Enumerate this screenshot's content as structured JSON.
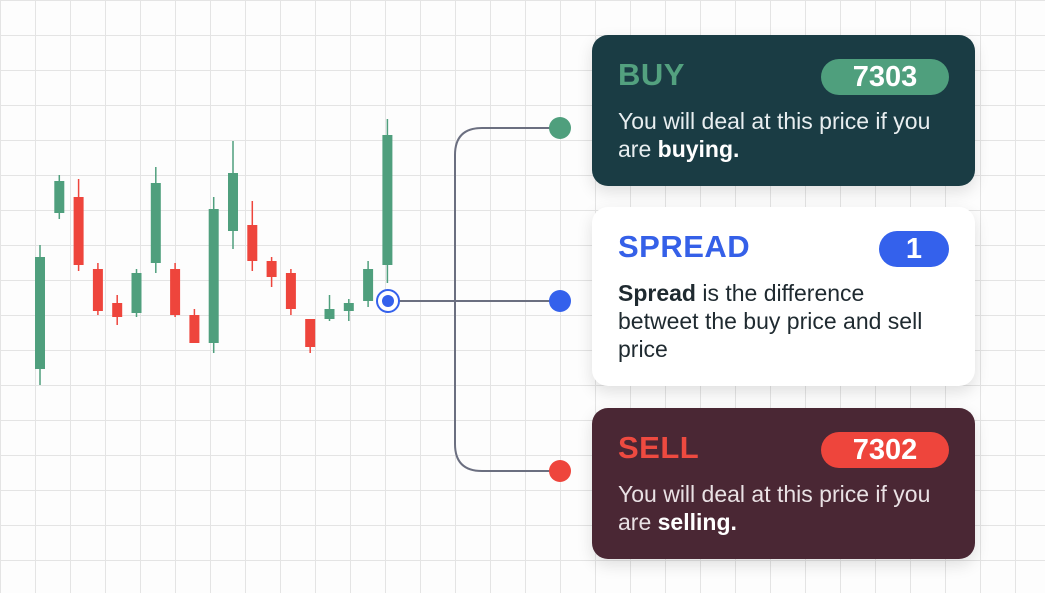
{
  "chart_data": {
    "type": "candlestick",
    "title": "",
    "xlabel": "",
    "ylabel": "",
    "ylim": [
      7200,
      7400
    ],
    "candles": [
      {
        "open": 7268,
        "close": 7324,
        "high": 7330,
        "low": 7260,
        "dir": "up"
      },
      {
        "open": 7346,
        "close": 7362,
        "high": 7365,
        "low": 7343,
        "dir": "up"
      },
      {
        "open": 7354,
        "close": 7320,
        "high": 7363,
        "low": 7317,
        "dir": "down"
      },
      {
        "open": 7318,
        "close": 7297,
        "high": 7321,
        "low": 7295,
        "dir": "down"
      },
      {
        "open": 7301,
        "close": 7294,
        "high": 7305,
        "low": 7290,
        "dir": "down"
      },
      {
        "open": 7296,
        "close": 7316,
        "high": 7318,
        "low": 7294,
        "dir": "up"
      },
      {
        "open": 7321,
        "close": 7361,
        "high": 7369,
        "low": 7316,
        "dir": "up"
      },
      {
        "open": 7318,
        "close": 7295,
        "high": 7321,
        "low": 7294,
        "dir": "down"
      },
      {
        "open": 7295,
        "close": 7281,
        "high": 7298,
        "low": 7281,
        "dir": "down"
      },
      {
        "open": 7281,
        "close": 7348,
        "high": 7354,
        "low": 7276,
        "dir": "up"
      },
      {
        "open": 7337,
        "close": 7366,
        "high": 7382,
        "low": 7328,
        "dir": "up"
      },
      {
        "open": 7340,
        "close": 7322,
        "high": 7352,
        "low": 7317,
        "dir": "down"
      },
      {
        "open": 7322,
        "close": 7314,
        "high": 7324,
        "low": 7309,
        "dir": "down"
      },
      {
        "open": 7316,
        "close": 7298,
        "high": 7318,
        "low": 7295,
        "dir": "down"
      },
      {
        "open": 7293,
        "close": 7279,
        "high": 7293,
        "low": 7276,
        "dir": "down"
      },
      {
        "open": 7293,
        "close": 7298,
        "high": 7305,
        "low": 7292,
        "dir": "up"
      },
      {
        "open": 7297,
        "close": 7301,
        "high": 7303,
        "low": 7292,
        "dir": "up"
      },
      {
        "open": 7302,
        "close": 7318,
        "high": 7322,
        "low": 7299,
        "dir": "up"
      },
      {
        "open": 7320,
        "close": 7385,
        "high": 7393,
        "low": 7311,
        "dir": "up"
      }
    ]
  },
  "colors": {
    "up": "#4f9f7d",
    "down": "#ee453c",
    "connector": "#6b6f80",
    "marker": "#3461ec"
  },
  "buy": {
    "title": "BUY",
    "price": "7303",
    "text_before": "You will deal at this price if you are ",
    "text_bold": "buying."
  },
  "spread": {
    "title": "SPREAD",
    "value": "1",
    "text_bold": "Spread",
    "text_after": " is the difference betweet the buy price and sell price"
  },
  "sell": {
    "title": "SELL",
    "price": "7302",
    "text_before": "You will deal at this price if you are ",
    "text_bold": "selling."
  }
}
